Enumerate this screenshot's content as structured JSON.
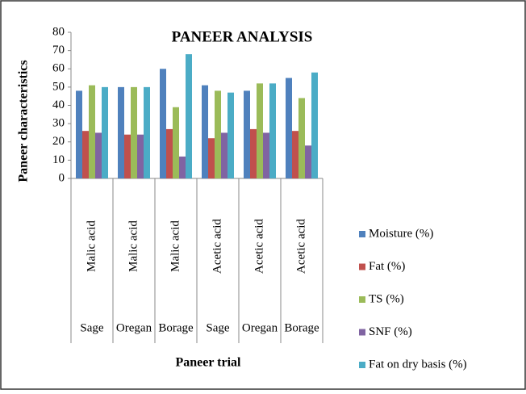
{
  "chart_data": {
    "type": "bar",
    "title": "PANEER ANALYSIS",
    "y_label": "Paneer characteristics",
    "x_label": "Paneer trial",
    "categories": [
      "Sage",
      "Oregan",
      "Borage",
      "Sage",
      "Oregan",
      "Borage"
    ],
    "category_groups": [
      "Malic acid",
      "Malic acid",
      "Malic acid",
      "Acetic acid",
      "Acetic acid",
      "Acetic acid"
    ],
    "series": [
      {
        "name": "Moisture (%)",
        "color": "#4f81bd",
        "values": [
          48,
          50,
          60,
          51,
          48,
          55
        ]
      },
      {
        "name": "Fat (%)",
        "color": "#c0504d",
        "values": [
          26,
          24,
          27,
          22,
          27,
          26
        ]
      },
      {
        "name": "TS (%)",
        "color": "#9bbb59",
        "values": [
          51,
          50,
          39,
          48,
          52,
          44
        ]
      },
      {
        "name": "SNF (%)",
        "color": "#8064a2",
        "values": [
          25,
          24,
          12,
          25,
          25,
          18
        ]
      },
      {
        "name": "Fat on dry basis (%)",
        "color": "#4bacc6",
        "values": [
          50,
          50,
          68,
          47,
          52,
          58
        ]
      }
    ],
    "ylim": [
      0,
      80
    ],
    "yticks": [
      0,
      10,
      20,
      30,
      40,
      50,
      60,
      70,
      80
    ],
    "grid": false,
    "legend": "right"
  }
}
